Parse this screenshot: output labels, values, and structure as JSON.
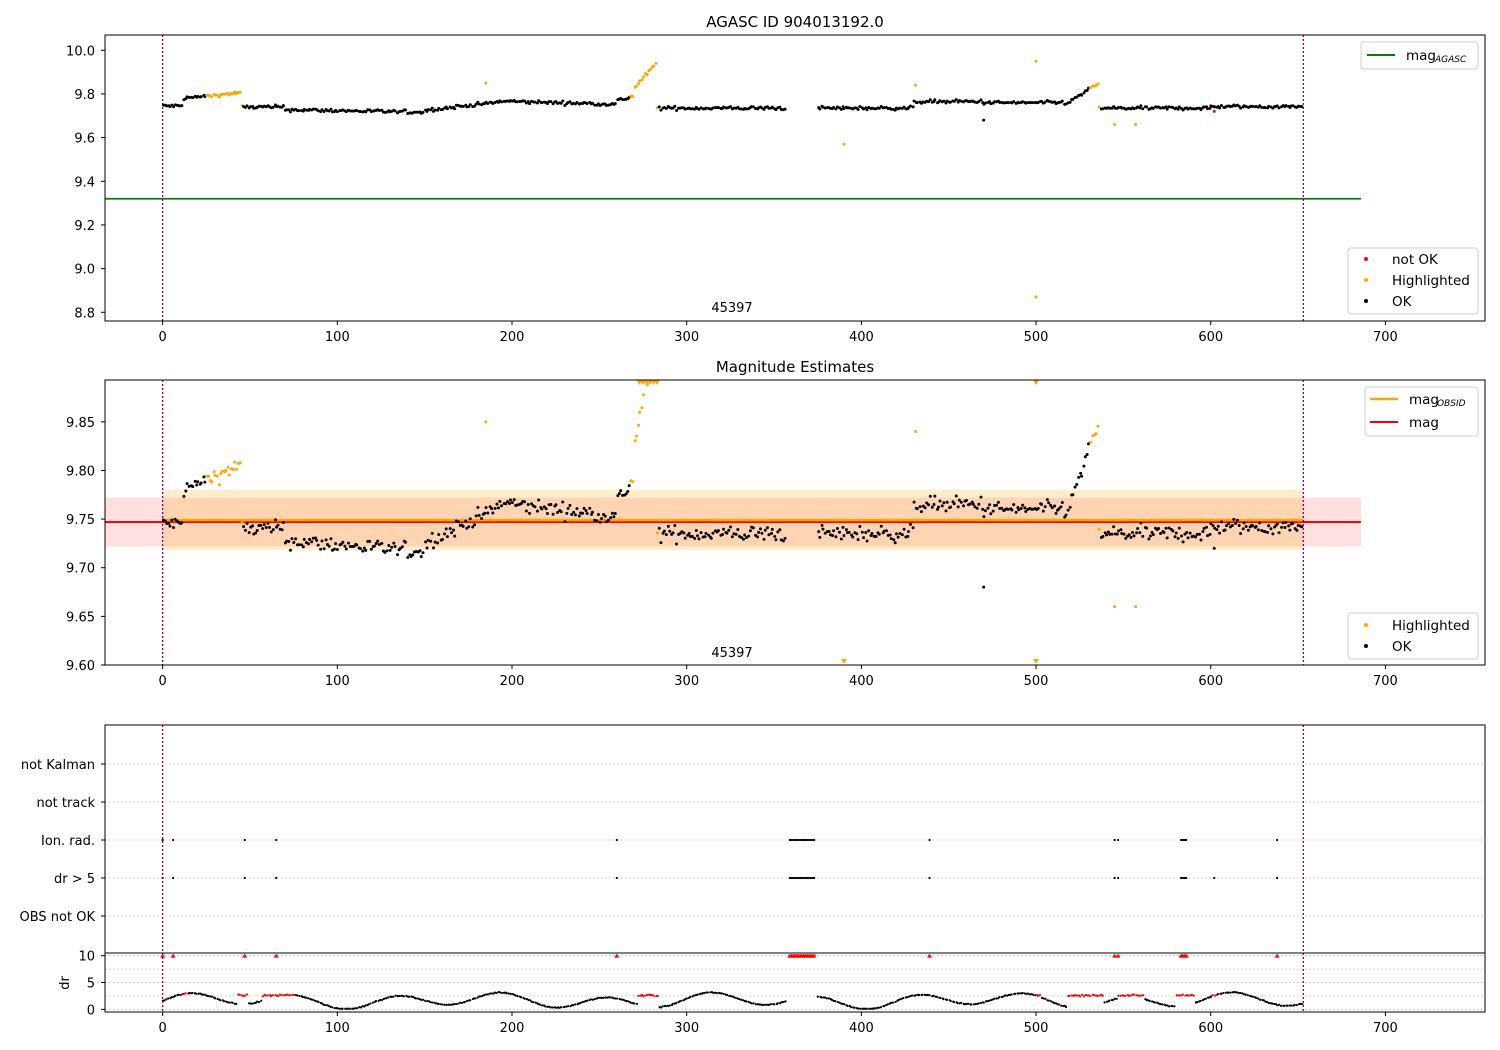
{
  "chart_data": [
    {
      "type": "scatter",
      "title": "AGASC ID 904013192.0",
      "xlim": [
        -33,
        757
      ],
      "ylim": [
        8.76,
        10.07
      ],
      "xticks": [
        0,
        100,
        200,
        300,
        400,
        500,
        600,
        700
      ],
      "yticks": [
        8.8,
        9.0,
        9.2,
        9.4,
        9.6,
        9.8,
        10.0
      ],
      "ytick_labels": [
        "8.8",
        "9.0",
        "9.2",
        "9.4",
        "9.6",
        "9.8",
        "10.0"
      ],
      "annotation": {
        "text": "45397",
        "x": 327,
        "y": 8.8
      },
      "obs_boundaries": [
        0,
        653
      ],
      "mag_agasc": {
        "value": 9.32,
        "x_range": [
          -33,
          686
        ],
        "color": "#008000"
      },
      "series": [
        {
          "name": "not OK",
          "color": "#ff0000"
        },
        {
          "name": "Highlighted",
          "color": "#ffa500"
        },
        {
          "name": "OK",
          "color": "#000000"
        }
      ],
      "outliers": [
        {
          "x": 390,
          "y": 9.57,
          "status": "Highlighted"
        },
        {
          "x": 500,
          "y": 9.95,
          "status": "Highlighted"
        },
        {
          "x": 500,
          "y": 8.87,
          "status": "Highlighted"
        },
        {
          "x": 545,
          "y": 9.66,
          "status": "Highlighted"
        },
        {
          "x": 557,
          "y": 9.66,
          "status": "Highlighted"
        },
        {
          "x": 185,
          "y": 9.85,
          "status": "Highlighted"
        },
        {
          "x": 431,
          "y": 9.84,
          "status": "Highlighted"
        },
        {
          "x": 470,
          "y": 9.68,
          "status": "OK"
        },
        {
          "x": 602,
          "y": 9.72,
          "status": "not OK"
        }
      ],
      "legend": [
        {
          "label": "mag",
          "sub": "AGASC",
          "kind": "line",
          "color": "#008000",
          "position": "top-right"
        },
        {
          "label": "not OK",
          "kind": "dot",
          "color": "#ff0000",
          "position": "bottom-right"
        },
        {
          "label": "Highlighted",
          "kind": "dot",
          "color": "#ffa500",
          "position": "bottom-right"
        },
        {
          "label": "OK",
          "kind": "dot",
          "color": "#000000",
          "position": "bottom-right"
        }
      ]
    },
    {
      "type": "scatter",
      "title": "Magnitude Estimates",
      "xlim": [
        -33,
        757
      ],
      "ylim": [
        9.6,
        9.893
      ],
      "xticks": [
        0,
        100,
        200,
        300,
        400,
        500,
        600,
        700
      ],
      "yticks": [
        9.6,
        9.65,
        9.7,
        9.75,
        9.8,
        9.85
      ],
      "ytick_labels": [
        "9.60",
        "9.65",
        "9.70",
        "9.75",
        "9.80",
        "9.85"
      ],
      "annotation": {
        "text": "45397",
        "x": 327,
        "y": 9.61
      },
      "obs_boundaries": [
        0,
        653
      ],
      "mag": {
        "value": 9.747,
        "band": [
          9.722,
          9.772
        ],
        "x_range": [
          -33,
          686
        ],
        "color": "#ff0000"
      },
      "mag_obsid": {
        "value": 9.749,
        "band": [
          9.718,
          9.78
        ],
        "x_range": [
          0,
          653
        ],
        "color": "#ffa500"
      },
      "clipped_high": [
        273,
        275,
        277,
        279,
        281,
        283,
        500
      ],
      "clipped_low": [
        390,
        500
      ],
      "legend": [
        {
          "label": "mag",
          "sub": "OBSID",
          "kind": "line",
          "color": "#ffa500",
          "position": "top-right"
        },
        {
          "label": "mag",
          "kind": "line",
          "color": "#ff0000",
          "position": "top-right"
        },
        {
          "label": "Highlighted",
          "kind": "dot",
          "color": "#ffa500",
          "position": "bottom-right"
        },
        {
          "label": "OK",
          "kind": "dot",
          "color": "#000000",
          "position": "bottom-right"
        }
      ]
    },
    {
      "type": "scatter",
      "title": "",
      "xlim": [
        -33,
        757
      ],
      "categories": [
        "not Kalman",
        "not track",
        "Ion. rad.",
        "dr > 5",
        "OBS not OK"
      ],
      "flag_times": {
        "not Kalman": [],
        "not track": [],
        "Ion. rad.": [
          0,
          6,
          47,
          65,
          260,
          359,
          360,
          361,
          362,
          363,
          364,
          365,
          366,
          367,
          368,
          369,
          370,
          371,
          372,
          373,
          439,
          545,
          547,
          583,
          584,
          585,
          586,
          638
        ],
        "dr > 5": [
          0,
          6,
          47,
          65,
          260,
          359,
          360,
          361,
          362,
          363,
          364,
          365,
          366,
          367,
          368,
          369,
          370,
          371,
          372,
          373,
          439,
          545,
          547,
          583,
          584,
          585,
          586,
          602,
          638
        ],
        "OBS not OK": []
      },
      "obs_boundaries": [
        0,
        653
      ]
    },
    {
      "type": "scatter",
      "title": "",
      "ylabel": "dr",
      "xlim": [
        -33,
        757
      ],
      "ylim": [
        -0.5,
        10.5
      ],
      "xticks": [
        0,
        100,
        200,
        300,
        400,
        500,
        600,
        700
      ],
      "yticks": [
        0,
        5,
        10
      ],
      "ytick_labels": [
        "0",
        "5",
        "10"
      ],
      "clip_at": 10,
      "clipped_points": [
        0,
        6,
        47,
        65,
        260,
        359,
        360,
        361,
        362,
        363,
        364,
        365,
        366,
        367,
        368,
        369,
        370,
        371,
        372,
        373,
        439,
        545,
        547,
        583,
        584,
        585,
        586,
        638
      ],
      "red_segments": [
        [
          12,
          14
        ],
        [
          43,
          48
        ],
        [
          57,
          75
        ],
        [
          272,
          283
        ],
        [
          500,
          502
        ],
        [
          518,
          538
        ],
        [
          547,
          561
        ],
        [
          580,
          590
        ],
        [
          601,
          603
        ]
      ],
      "obs_boundaries": [
        0,
        653
      ]
    }
  ],
  "x_tick_labels": [
    "0",
    "100",
    "200",
    "300",
    "400",
    "500",
    "600",
    "700"
  ]
}
